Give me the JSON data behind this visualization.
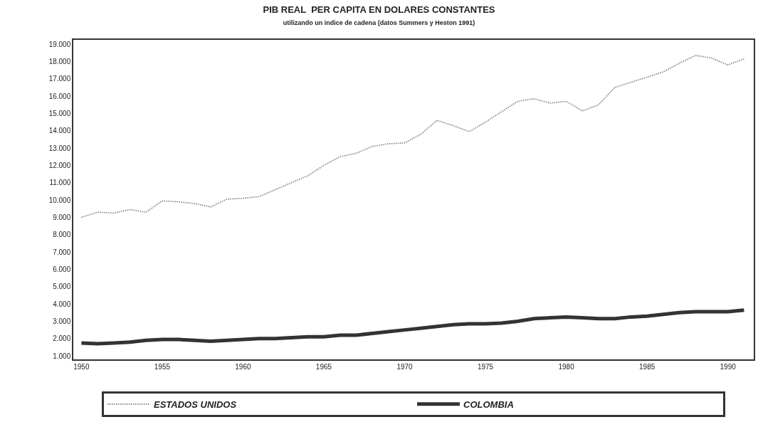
{
  "chart_data": {
    "type": "line",
    "title": "PIB REAL  PER CAPITA EN DOLARES CONSTANTES",
    "subtitle": "utilizando un indice de cadena (datos Summers y Heston 1991)",
    "x": [
      1950,
      1951,
      1952,
      1953,
      1954,
      1955,
      1956,
      1957,
      1958,
      1959,
      1960,
      1961,
      1962,
      1963,
      1964,
      1965,
      1966,
      1967,
      1968,
      1969,
      1970,
      1971,
      1972,
      1973,
      1974,
      1975,
      1976,
      1977,
      1978,
      1979,
      1980,
      1981,
      1982,
      1983,
      1984,
      1985,
      1986,
      1987,
      1988,
      1989,
      1990,
      1991
    ],
    "series": [
      {
        "name": "ESTADOS UNIDOS",
        "color": "#7a7a7a",
        "line_style": "dotted",
        "values": [
          9000,
          9300,
          9250,
          9450,
          9300,
          9950,
          9900,
          9800,
          9600,
          10050,
          10100,
          10200,
          10600,
          11000,
          11400,
          12000,
          12500,
          12700,
          13100,
          13250,
          13300,
          13800,
          14600,
          14300,
          13950,
          14500,
          15100,
          15700,
          15850,
          15600,
          15700,
          15150,
          15500,
          16500,
          16800,
          17100,
          17400,
          17900,
          18350,
          18200,
          17800,
          18150
        ]
      },
      {
        "name": "COLOMBIA",
        "color": "#333333",
        "line_style": "solid",
        "values": [
          1750,
          1700,
          1750,
          1800,
          1900,
          1950,
          1950,
          1900,
          1850,
          1900,
          1950,
          2000,
          2000,
          2050,
          2100,
          2100,
          2200,
          2200,
          2300,
          2400,
          2500,
          2600,
          2700,
          2800,
          2850,
          2850,
          2900,
          3000,
          3150,
          3200,
          3250,
          3200,
          3150,
          3150,
          3250,
          3300,
          3400,
          3500,
          3550,
          3550,
          3550,
          3650
        ]
      }
    ],
    "xlim": [
      1949.5,
      1991.6
    ],
    "xticks": [
      1950,
      1955,
      1960,
      1965,
      1970,
      1975,
      1980,
      1985,
      1990
    ],
    "ylim": [
      800,
      19250
    ],
    "yticks": [
      {
        "value": 1000,
        "label": "1.000"
      },
      {
        "value": 2000,
        "label": "2.000"
      },
      {
        "value": 3000,
        "label": "3.000"
      },
      {
        "value": 4000,
        "label": "4.000"
      },
      {
        "value": 5000,
        "label": "5.000"
      },
      {
        "value": 6000,
        "label": "6.000"
      },
      {
        "value": 7000,
        "label": "7.000"
      },
      {
        "value": 8000,
        "label": "8.000"
      },
      {
        "value": 9000,
        "label": "9.000"
      },
      {
        "value": 10000,
        "label": "10.000"
      },
      {
        "value": 11000,
        "label": "11.000"
      },
      {
        "value": 12000,
        "label": "12.000"
      },
      {
        "value": 13000,
        "label": "13.000"
      },
      {
        "value": 14000,
        "label": "14.000"
      },
      {
        "value": 15000,
        "label": "15.000"
      },
      {
        "value": 16000,
        "label": "16.000"
      },
      {
        "value": 17000,
        "label": "17.000"
      },
      {
        "value": 18000,
        "label": "18.000"
      },
      {
        "value": 19000,
        "label": "19.000"
      }
    ],
    "legend": "bottom",
    "marker": "none"
  }
}
